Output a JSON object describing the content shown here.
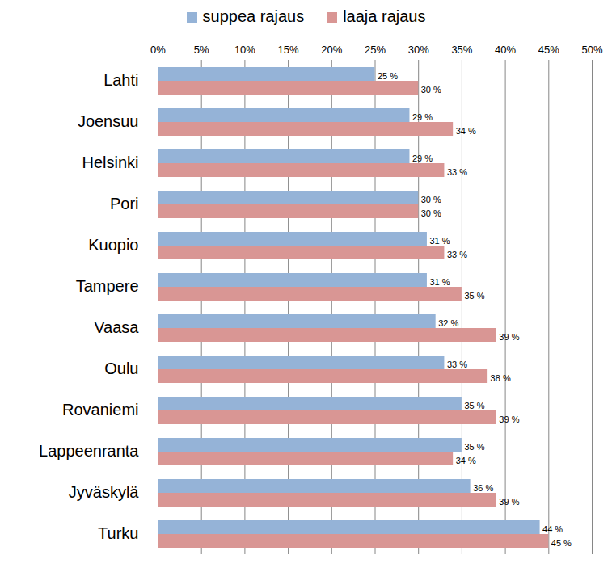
{
  "chart_data": {
    "type": "bar",
    "orientation": "horizontal",
    "categories": [
      "Lahti",
      "Joensuu",
      "Helsinki",
      "Pori",
      "Kuopio",
      "Tampere",
      "Vaasa",
      "Oulu",
      "Rovaniemi",
      "Lappeenranta",
      "Jyväskylä",
      "Turku"
    ],
    "series": [
      {
        "name": "suppea rajaus",
        "color": "#95b3d7",
        "values": [
          25,
          29,
          29,
          30,
          31,
          31,
          32,
          33,
          35,
          35,
          36,
          44
        ],
        "value_labels": [
          "25 %",
          "29 %",
          "29 %",
          "30 %",
          "31 %",
          "31 %",
          "32 %",
          "33 %",
          "35 %",
          "35 %",
          "36 %",
          "44 %"
        ]
      },
      {
        "name": "laaja rajaus",
        "color": "#d99694",
        "values": [
          30,
          34,
          33,
          30,
          33,
          35,
          39,
          38,
          39,
          34,
          39,
          45
        ],
        "value_labels": [
          "30 %",
          "34 %",
          "33 %",
          "30 %",
          "33 %",
          "35 %",
          "39 %",
          "38 %",
          "39 %",
          "34 %",
          "39 %",
          "45 %"
        ]
      }
    ],
    "xlim": [
      0,
      50
    ],
    "xticks": [
      {
        "value": 0,
        "label": "0%"
      },
      {
        "value": 5,
        "label": "5%"
      },
      {
        "value": 10,
        "label": "10%"
      },
      {
        "value": 15,
        "label": "15%"
      },
      {
        "value": 20,
        "label": "20%"
      },
      {
        "value": 25,
        "label": "25%"
      },
      {
        "value": 30,
        "label": "30%"
      },
      {
        "value": 35,
        "label": "35%"
      },
      {
        "value": 40,
        "label": "40%"
      },
      {
        "value": 45,
        "label": "45%"
      },
      {
        "value": 50,
        "label": "50%"
      }
    ],
    "grid": true,
    "data_labels": true,
    "legend": "top"
  }
}
